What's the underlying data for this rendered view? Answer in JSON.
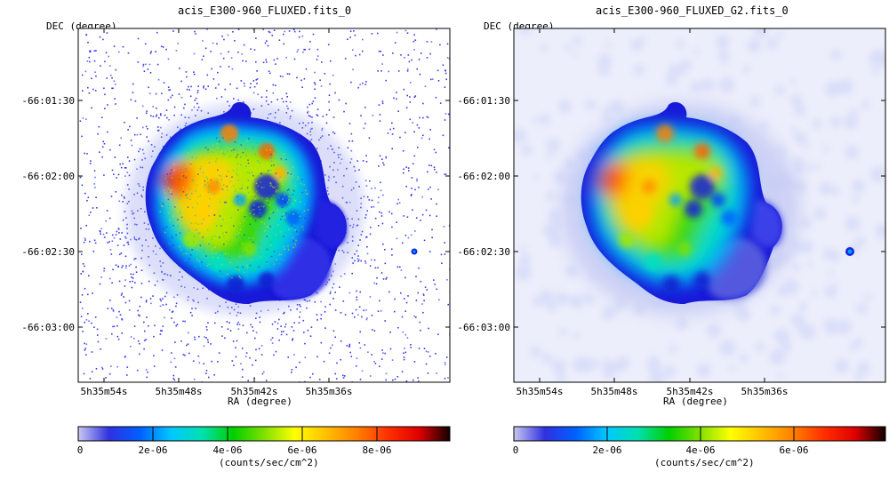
{
  "panels": [
    {
      "title": "acis_E300-960_FLUXED.fits_0",
      "y_label": "DEC (degree)",
      "x_label": "RA (degree)",
      "y_ticks": [
        "-66:01:30",
        "-66:02:00",
        "-66:02:30",
        "-66:03:00"
      ],
      "x_ticks": [
        "5h35m54s",
        "5h35m48s",
        "5h35m42s",
        "5h35m36s"
      ],
      "colorbar_ticks": [
        "0",
        "2e-06",
        "4e-06",
        "6e-06",
        "8e-06"
      ],
      "colorbar_label": "(counts/sec/cm^2)",
      "style": "raw"
    },
    {
      "title": "acis_E300-960_FLUXED_G2.fits_0",
      "y_label": "DEC (degree)",
      "x_label": "RA (degree)",
      "y_ticks": [
        "-66:01:30",
        "-66:02:00",
        "-66:02:30",
        "-66:03:00"
      ],
      "x_ticks": [
        "5h35m54s",
        "5h35m48s",
        "5h35m42s",
        "5h35m36s"
      ],
      "colorbar_ticks": [
        "0",
        "2e-06",
        "4e-06",
        "6e-06"
      ],
      "colorbar_label": "(counts/sec/cm^2)",
      "style": "smoothed"
    }
  ],
  "colors": {
    "colormap": [
      "#ffffff",
      "#2020e0",
      "#0090ff",
      "#00e0e0",
      "#00d000",
      "#a0e000",
      "#ffff00",
      "#ffa000",
      "#ff4000",
      "#e00000",
      "#200000"
    ],
    "background_raw": "#ffffff",
    "background_smoothed": "#eceefb"
  }
}
